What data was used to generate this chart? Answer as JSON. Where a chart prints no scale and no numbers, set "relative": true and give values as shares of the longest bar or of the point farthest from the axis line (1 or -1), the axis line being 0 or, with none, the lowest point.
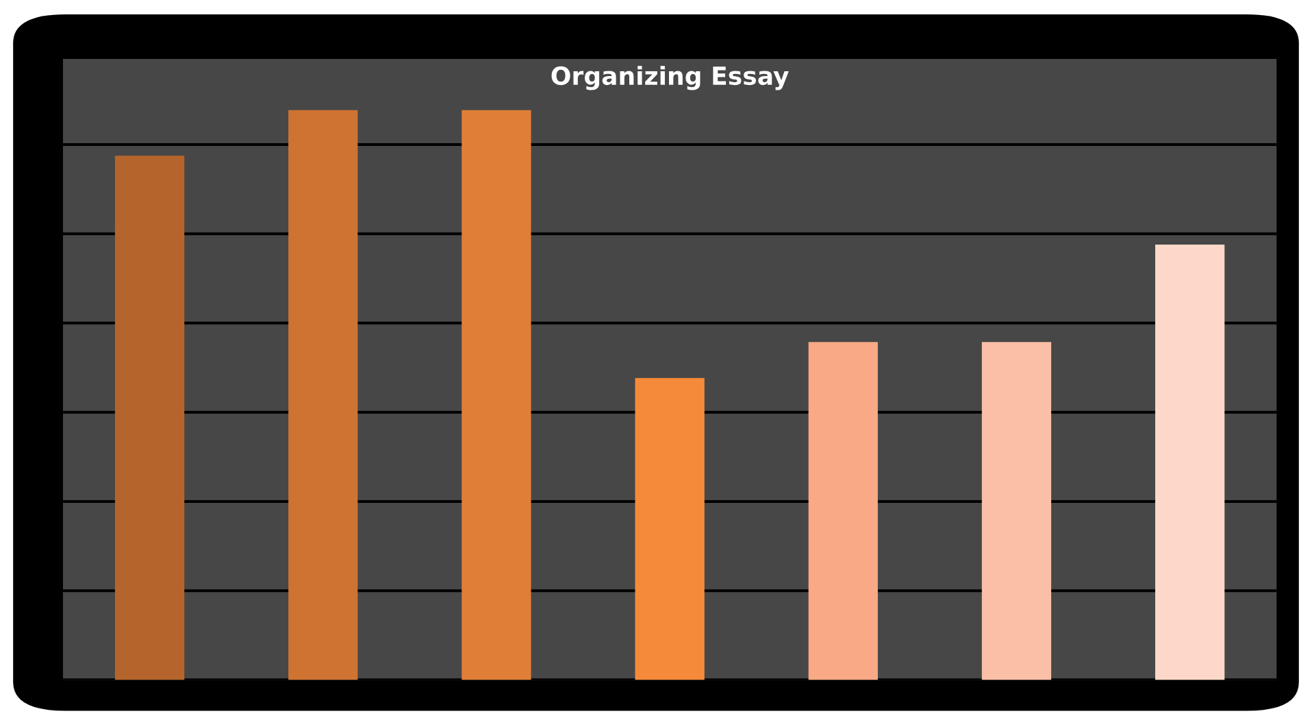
{
  "chart_data": {
    "type": "bar",
    "title": "Organizing Essay",
    "relative": true,
    "categories": [
      null,
      null,
      null,
      null,
      null,
      null,
      null
    ],
    "values": [
      0.92,
      1,
      1,
      0.53,
      0.593,
      0.593,
      0.764
    ],
    "colors": [
      "#b5652b",
      "#cf7332",
      "#e07e38",
      "#f58b3a",
      "#f9a985",
      "#fbbfa8",
      "#fdd8c8"
    ],
    "grid": "y"
  }
}
